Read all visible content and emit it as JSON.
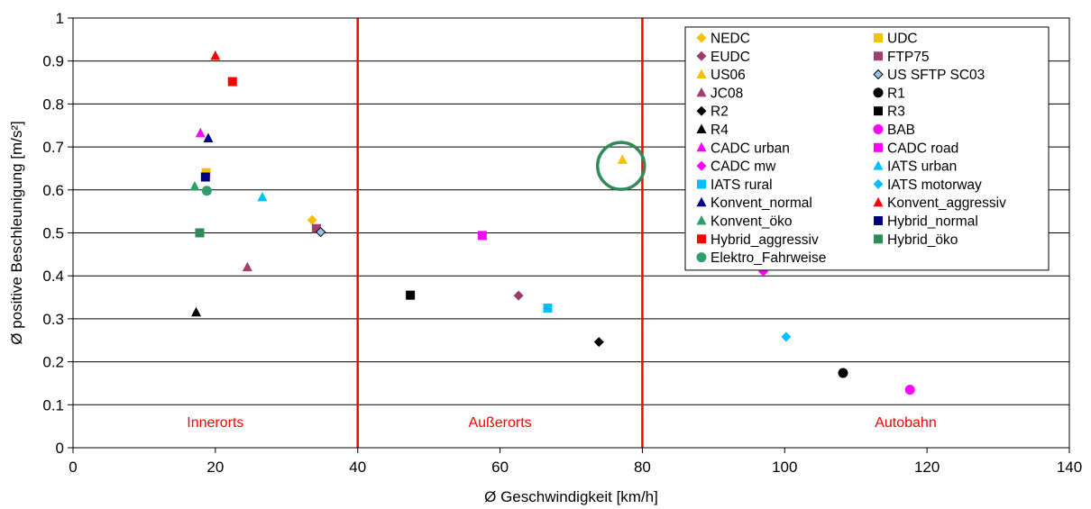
{
  "chart_data": {
    "type": "scatter",
    "xlabel": "Ø Geschwindigkeit [km/h]",
    "ylabel": "Ø positive Beschleunigung [m/s²]",
    "xlim": [
      0,
      140
    ],
    "ylim": [
      0,
      1
    ],
    "x_ticks": [
      "0",
      "20",
      "40",
      "60",
      "80",
      "100",
      "120",
      "140"
    ],
    "y_ticks": [
      "0",
      "0.1",
      "0.2",
      "0.3",
      "0.4",
      "0.5",
      "0.6",
      "0.7",
      "0.8",
      "0.9",
      "1"
    ],
    "grid": "horizontal",
    "legend_position": "top-right",
    "zone_boundaries": [
      40,
      80
    ],
    "zone_line_color": "#ff0000",
    "zones": [
      {
        "label": "Innerorts",
        "x": 20
      },
      {
        "label": "Außerorts",
        "x": 60
      },
      {
        "label": "Autobahn",
        "x": 117
      }
    ],
    "highlight": {
      "x": 77,
      "y": 0.66,
      "color": "#2e8b57"
    },
    "series": [
      {
        "name": "NEDC",
        "marker": "diamond",
        "color": "#f5c000",
        "x": 33.6,
        "y": 0.53
      },
      {
        "name": "UDC",
        "marker": "square",
        "color": "#f5c000",
        "x": 18.7,
        "y": 0.64
      },
      {
        "name": "EUDC",
        "marker": "diamond",
        "color": "#9b3b6b",
        "x": 62.6,
        "y": 0.354
      },
      {
        "name": "FTP75",
        "marker": "square",
        "color": "#a04070",
        "x": 34.2,
        "y": 0.51
      },
      {
        "name": "US06",
        "marker": "triangle",
        "color": "#f5c000",
        "x": 77.2,
        "y": 0.67
      },
      {
        "name": "US SFTP SC03",
        "marker": "diamond-outline",
        "color": "#9bc0e8",
        "x": 34.8,
        "y": 0.502
      },
      {
        "name": "JC08",
        "marker": "triangle",
        "color": "#a04070",
        "x": 24.5,
        "y": 0.42
      },
      {
        "name": "R1",
        "marker": "circle",
        "color": "#000000",
        "x": 108.2,
        "y": 0.174
      },
      {
        "name": "R2",
        "marker": "diamond",
        "color": "#000000",
        "x": 73.9,
        "y": 0.246
      },
      {
        "name": "R3",
        "marker": "square",
        "color": "#000000",
        "x": 47.4,
        "y": 0.355
      },
      {
        "name": "R4",
        "marker": "triangle",
        "color": "#000000",
        "x": 17.3,
        "y": 0.315
      },
      {
        "name": "BAB",
        "marker": "circle",
        "color": "#ff00ff",
        "x": 117.6,
        "y": 0.135
      },
      {
        "name": "CADC urban",
        "marker": "triangle",
        "color": "#ff00ff",
        "x": 17.9,
        "y": 0.732
      },
      {
        "name": "CADC road",
        "marker": "square",
        "color": "#ff00ff",
        "x": 57.5,
        "y": 0.494
      },
      {
        "name": "CADC mw",
        "marker": "diamond",
        "color": "#ff00ff",
        "x": 97,
        "y": 0.41
      },
      {
        "name": "IATS urban",
        "marker": "triangle",
        "color": "#00bfff",
        "x": 26.6,
        "y": 0.583
      },
      {
        "name": "IATS rural",
        "marker": "square",
        "color": "#00bfff",
        "x": 66.7,
        "y": 0.325
      },
      {
        "name": "IATS motorway",
        "marker": "diamond",
        "color": "#00bfff",
        "x": 100.2,
        "y": 0.258
      },
      {
        "name": "Konvent_normal",
        "marker": "triangle",
        "color": "#00007f",
        "x": 19,
        "y": 0.72
      },
      {
        "name": "Konvent_aggressiv",
        "marker": "triangle",
        "color": "#ff0000",
        "x": 20,
        "y": 0.912
      },
      {
        "name": "Konvent_öko",
        "marker": "triangle",
        "color": "#2e9e6a",
        "x": 17.1,
        "y": 0.608
      },
      {
        "name": "Hybrid_normal",
        "marker": "square",
        "color": "#00007f",
        "x": 18.6,
        "y": 0.63
      },
      {
        "name": "Hybrid_aggressiv",
        "marker": "square",
        "color": "#ff0000",
        "x": 22.4,
        "y": 0.852
      },
      {
        "name": "Hybrid_öko",
        "marker": "square",
        "color": "#2e8b57",
        "x": 17.8,
        "y": 0.5
      },
      {
        "name": "Elektro_Fahrweise",
        "marker": "circle",
        "color": "#2e9e6a",
        "x": 18.8,
        "y": 0.598
      }
    ]
  }
}
